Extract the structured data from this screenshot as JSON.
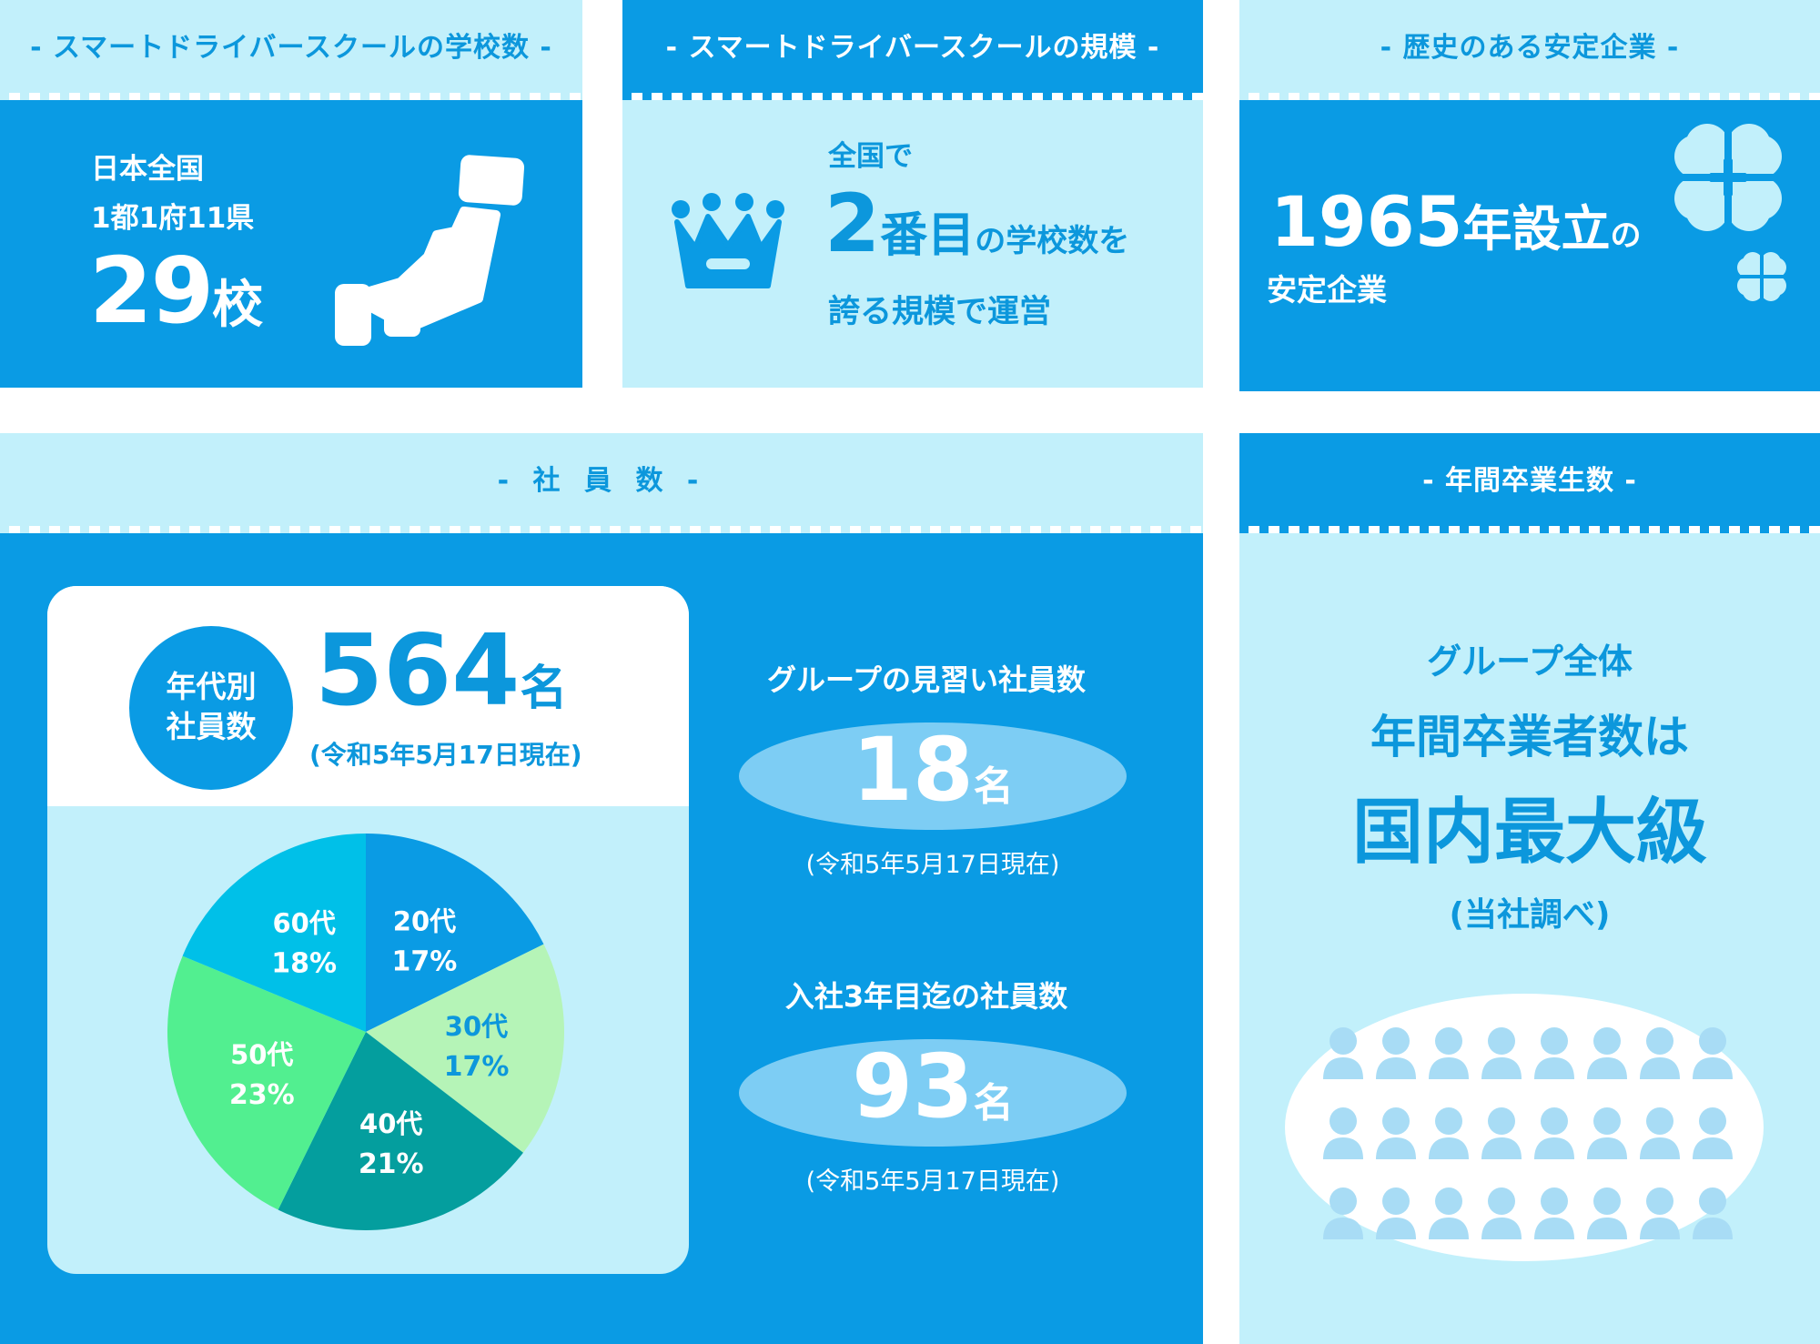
{
  "panels": {
    "schools": {
      "title": "- スマートドライバースクールの学校数 -",
      "line1": "日本全国",
      "line2": "1都1府11県",
      "number": "29",
      "unit": "校"
    },
    "scale": {
      "title": "- スマートドライバースクールの規模 -",
      "line1": "全国で",
      "rank": "2",
      "rank_unit": "番目",
      "line2_suffix": "の学校数を",
      "line3": "誇る規模で運営"
    },
    "history": {
      "title": "- 歴史のある安定企業 -",
      "year": "1965",
      "year_suffix": "年設立",
      "particle": "の",
      "line2": "安定企業"
    },
    "employees": {
      "title": "- 社 員 数 -",
      "circle_line1": "年代別",
      "circle_line2": "社員数",
      "total": "564",
      "total_unit": "名",
      "as_of": "(令和5年5月17日現在)",
      "trainee_label": "グループの見習い社員数",
      "trainee_value": "18",
      "trainee_unit": "名",
      "trainee_as_of": "(令和5年5月17日現在)",
      "newhire_label": "入社3年目迄の社員数",
      "newhire_value": "93",
      "newhire_unit": "名",
      "newhire_as_of": "(令和5年5月17日現在)"
    },
    "graduates": {
      "title": "- 年間卒業生数 -",
      "line1": "グループ全体",
      "line2": "年間卒業者数は",
      "line3": "国内最大級",
      "line4": "(当社調べ)"
    }
  },
  "chart_data": {
    "type": "pie",
    "categories": [
      "20代",
      "30代",
      "40代",
      "50代",
      "60代"
    ],
    "values": [
      17,
      17,
      21,
      23,
      18
    ],
    "value_labels": [
      "17%",
      "17%",
      "21%",
      "23%",
      "18%"
    ],
    "unit": "%",
    "colors": [
      "#0a9be4",
      "#b5f4b7",
      "#049e9e",
      "#52ef90",
      "#00c0e8"
    ],
    "label_colors": [
      "#ffffff",
      "#0c97dc",
      "#ffffff",
      "#ffffff",
      "#ffffff"
    ]
  },
  "colors": {
    "dark_blue": "#0a9be4",
    "light_blue": "#c2f0fb",
    "text_blue": "#0c97dc",
    "oval": "#7dcdf4",
    "people": "#a8dcf5"
  }
}
